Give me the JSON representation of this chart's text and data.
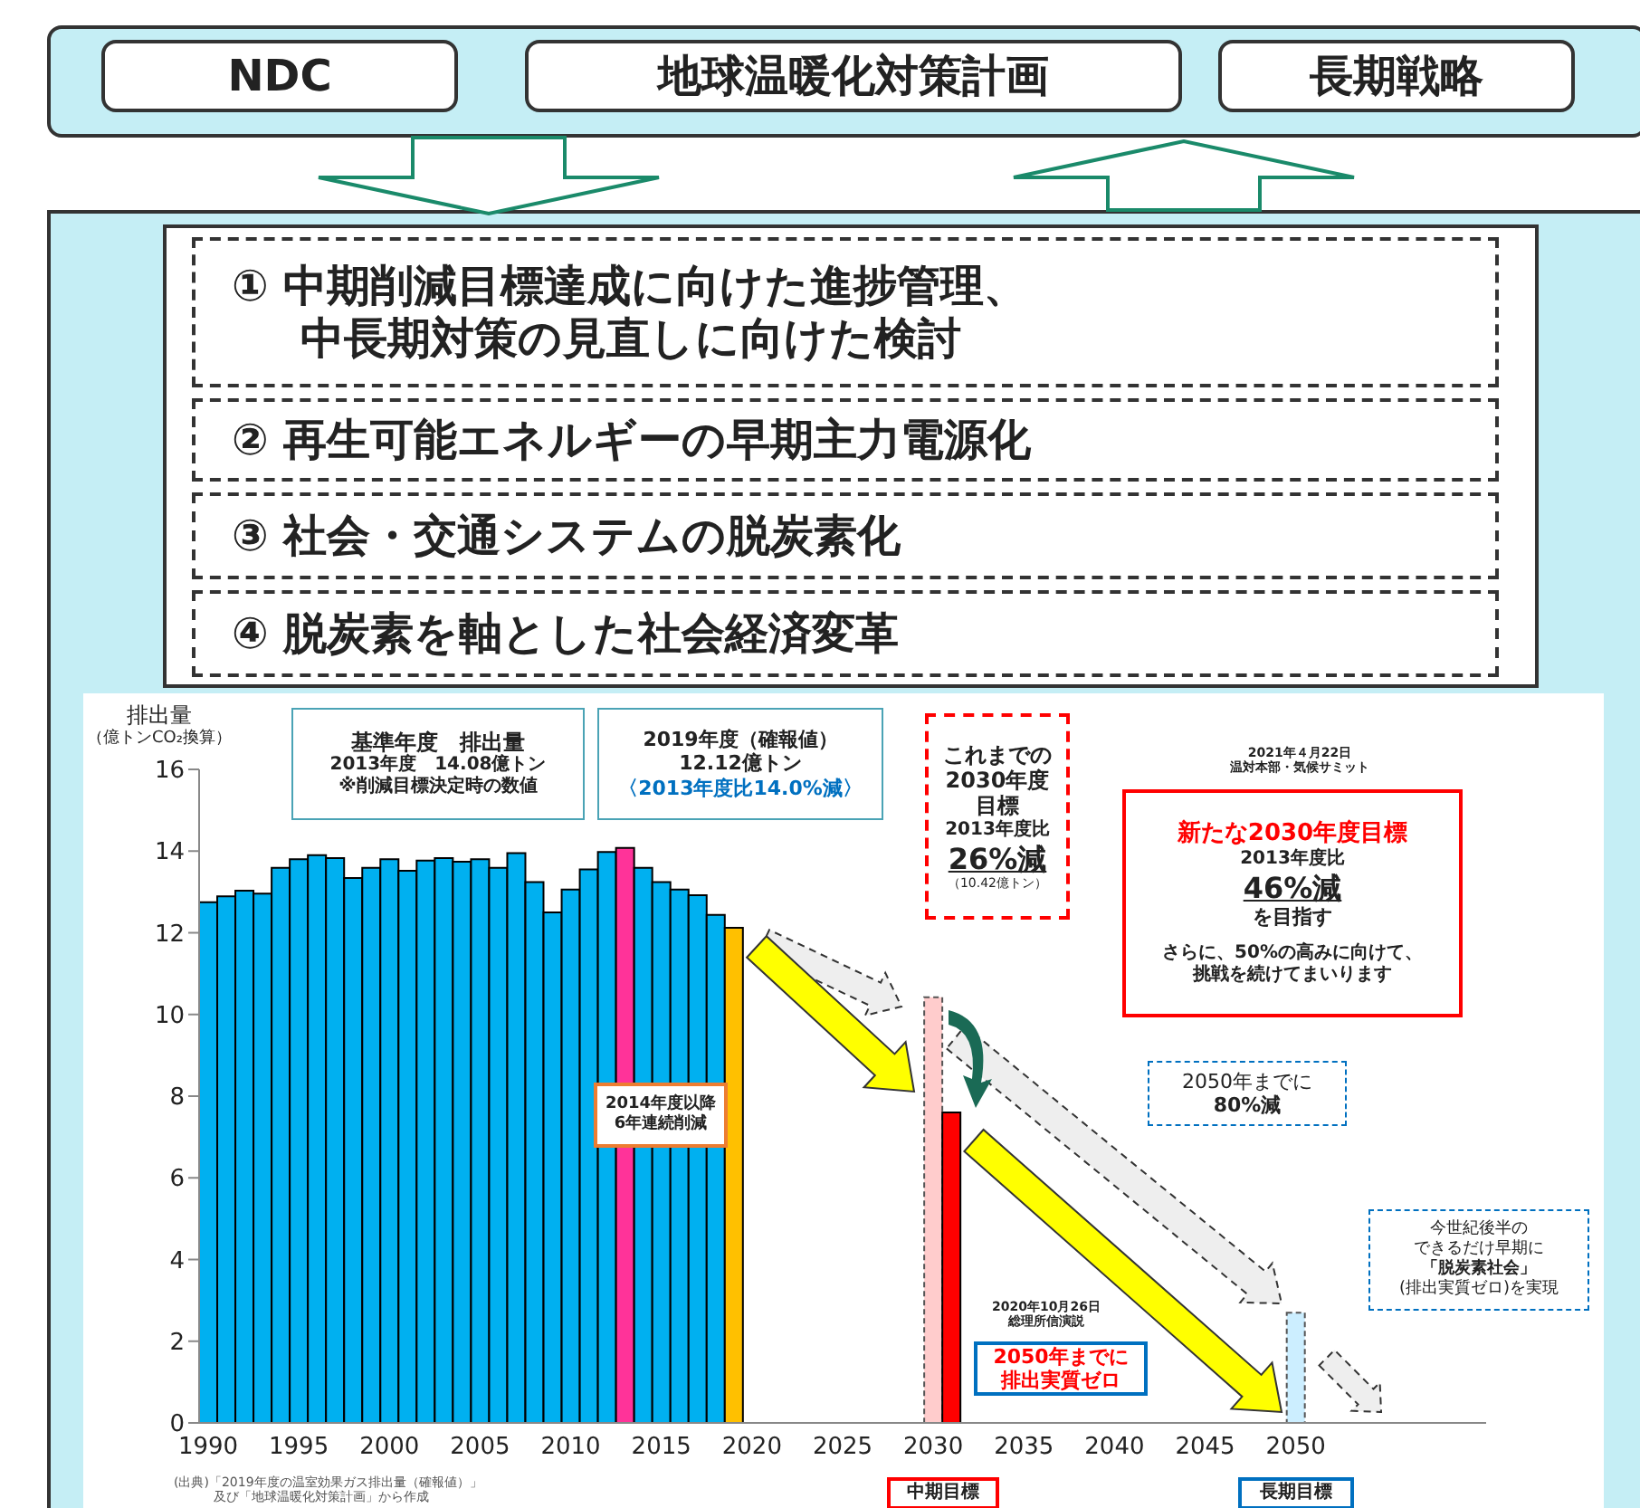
{
  "chart_data": {
    "type": "bar",
    "ylabel": "排出量（億トンCO₂換算）",
    "categories": [
      "1990",
      null,
      null,
      null,
      null,
      "1995",
      null,
      null,
      null,
      null,
      "2000",
      null,
      null,
      null,
      null,
      "2005",
      null,
      null,
      null,
      null,
      "2010",
      null,
      null,
      null,
      null,
      "2015",
      null,
      null,
      null,
      null,
      "2020",
      null,
      null,
      null,
      null,
      "2025",
      null,
      null,
      null,
      null,
      "2030",
      null,
      null,
      null,
      null,
      "2035",
      null,
      null,
      null,
      null,
      "2040",
      null,
      null,
      null,
      null,
      "2045",
      null,
      null,
      null,
      null,
      "2050",
      null,
      null,
      null,
      null,
      null,
      null,
      null,
      null,
      null,
      null
    ],
    "values": [
      12.75,
      12.89,
      13.03,
      12.96,
      13.59,
      13.8,
      13.9,
      13.83,
      13.34,
      13.59,
      13.8,
      13.52,
      13.77,
      13.83,
      13.74,
      13.8,
      13.59,
      13.95,
      13.24,
      12.5,
      13.06,
      13.55,
      13.98,
      14.08,
      13.59,
      13.24,
      13.06,
      12.92,
      12.44,
      12.12,
      null,
      null,
      null,
      null,
      null,
      null,
      null,
      null,
      null,
      null,
      10.42,
      7.6,
      null,
      null,
      null,
      null,
      null,
      null,
      null,
      null,
      null,
      null,
      null,
      null,
      null,
      null,
      null,
      null,
      null,
      null,
      2.7,
      null,
      null,
      null,
      null,
      null,
      null,
      null,
      null,
      null,
      null
    ],
    "colors": [
      "#00b0f0",
      "#00b0f0",
      "#00b0f0",
      "#00b0f0",
      "#00b0f0",
      "#00b0f0",
      "#00b0f0",
      "#00b0f0",
      "#00b0f0",
      "#00b0f0",
      "#00b0f0",
      "#00b0f0",
      "#00b0f0",
      "#00b0f0",
      "#00b0f0",
      "#00b0f0",
      "#00b0f0",
      "#00b0f0",
      "#00b0f0",
      "#00b0f0",
      "#00b0f0",
      "#00b0f0",
      "#00b0f0",
      "#ff3399",
      "#00b0f0",
      "#00b0f0",
      "#00b0f0",
      "#00b0f0",
      "#00b0f0",
      "#ffc000",
      null,
      null,
      null,
      null,
      null,
      null,
      null,
      null,
      null,
      null,
      "#ffcccc",
      "#ff0000",
      null,
      null,
      null,
      null,
      null,
      null,
      null,
      null,
      null,
      null,
      null,
      null,
      null,
      null,
      null,
      null,
      null,
      null,
      "#cceeff",
      null,
      null,
      null,
      null,
      null,
      null,
      null,
      null,
      null,
      null
    ],
    "ylim": [
      0,
      16
    ],
    "yticks": [
      0,
      2,
      4,
      6,
      8,
      10,
      12,
      14,
      16
    ],
    "annotations": [
      "NDC",
      "地球温暖化対策計画",
      "長期戦略",
      "① 中期削減目標達成に向けた進捗管理、中長期対策の見直しに向けた検討",
      "② 再生可能エネルギーの早期主力電源化",
      "③ 社会・交通システムの脱炭素化",
      "④ 脱炭素を軸とした社会経済変革",
      "基準年度　排出量2013年度　14.08億トン※削減目標決定時の数値",
      "2019年度（確報値）12.12億トン〈2013年度比14.0%減〉",
      "2014年度以降6年連続削減",
      "これまでの2030年度目標2013年度比26%減（10.42億トン）",
      "2021年４月22日温対本部・気候サミット",
      "新たな2030年度目標2013年度比46%減を目指すさらに、50%の高みに向けて、挑戦を続けてまいります",
      "2050年までに80%減",
      "今世紀後半のできるだけ早期に「脱炭素社会」(排出実質ゼロ)を実現",
      "2020年10月26日総理所信演説",
      "2050年までに排出実質ゼロ",
      "中期目標",
      "長期目標",
      "(出典)「2019年度の温室効果ガス排出量（確報値）」及び「地球温暖化対策計画」から作成"
    ]
  }
}
